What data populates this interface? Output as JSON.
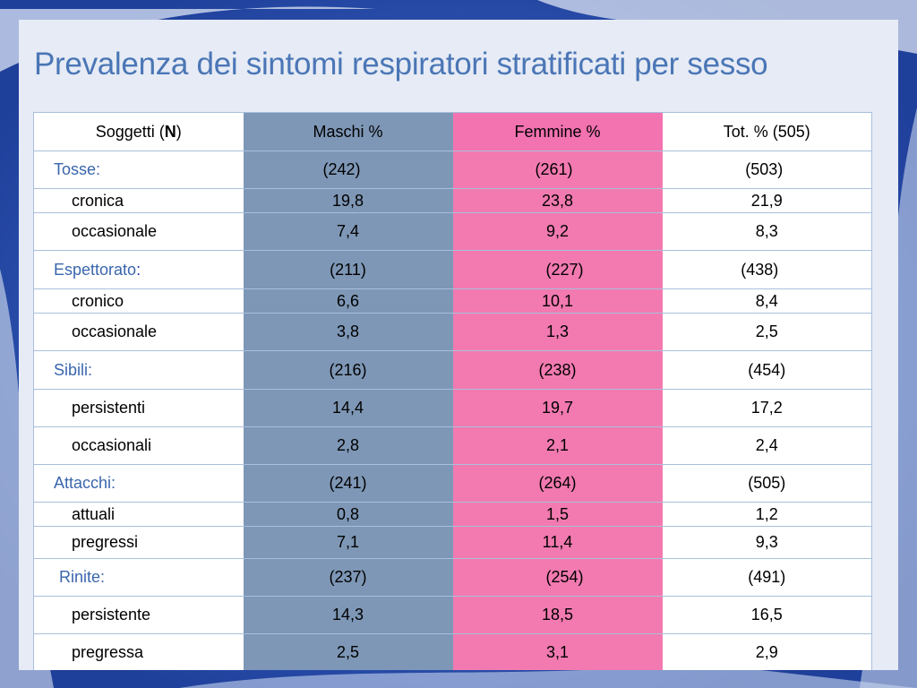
{
  "title": "Prevalenza dei sintomi respiratori stratificati per sesso",
  "colors": {
    "title": "#4a76b6",
    "category_label": "#3a66ad",
    "maschi_column": "#7e97b6",
    "femmine_column": "#f27ab0",
    "background": "#2d55b8"
  },
  "table": {
    "headers": {
      "soggetti_prefix": "Soggetti (",
      "soggetti_n": "N",
      "soggetti_suffix": ")",
      "maschi": "Maschi %",
      "femmine": "Femmine %",
      "tot": "Tot. % (505)"
    },
    "rows": [
      {
        "label": "Tosse:",
        "maschi": "(242)",
        "femmine": "(261)",
        "tot": "(503)"
      },
      {
        "label": "cronica",
        "maschi": "19,8",
        "femmine": "23,8",
        "tot": "21,9"
      },
      {
        "label": "occasionale",
        "maschi": "7,4",
        "femmine": "9,2",
        "tot": "8,3"
      },
      {
        "label": "Espettorato",
        "label_suffix": ":",
        "maschi": "(211)",
        "femmine": "(227)",
        "tot": "(438)"
      },
      {
        "label": "cronico",
        "maschi": "6,6",
        "femmine": "10,1",
        "tot": "8,4"
      },
      {
        "label": "occasionale",
        "maschi": "3,8",
        "femmine": "1,3",
        "tot": "2,5"
      },
      {
        "label": "Sibili:",
        "maschi": "(216)",
        "femmine": "(238)",
        "tot": "(454)"
      },
      {
        "label": "persistenti",
        "maschi": "14,4",
        "femmine": "19,7",
        "tot": "17,2"
      },
      {
        "label": "occasionali",
        "maschi": "2,8",
        "femmine": "2,1",
        "tot": "2,4"
      },
      {
        "label": "Attacchi:",
        "maschi": "(241)",
        "femmine": "(264)",
        "tot": "(505)"
      },
      {
        "label": "attuali",
        "maschi": "0,8",
        "femmine": "1,5",
        "tot": "1,2"
      },
      {
        "label": "pregressi",
        "maschi": "7,1",
        "femmine": "11,4",
        "tot": "9,3"
      },
      {
        "label": "Rinite:",
        "maschi": "(237)",
        "femmine": "(254)",
        "tot": "(491)"
      },
      {
        "label": "persistente",
        "maschi": "14,3",
        "femmine": "18,5",
        "tot": "16,5"
      },
      {
        "label": "pregressa",
        "maschi": "2,5",
        "femmine": "3,1",
        "tot": "2,9"
      }
    ]
  }
}
